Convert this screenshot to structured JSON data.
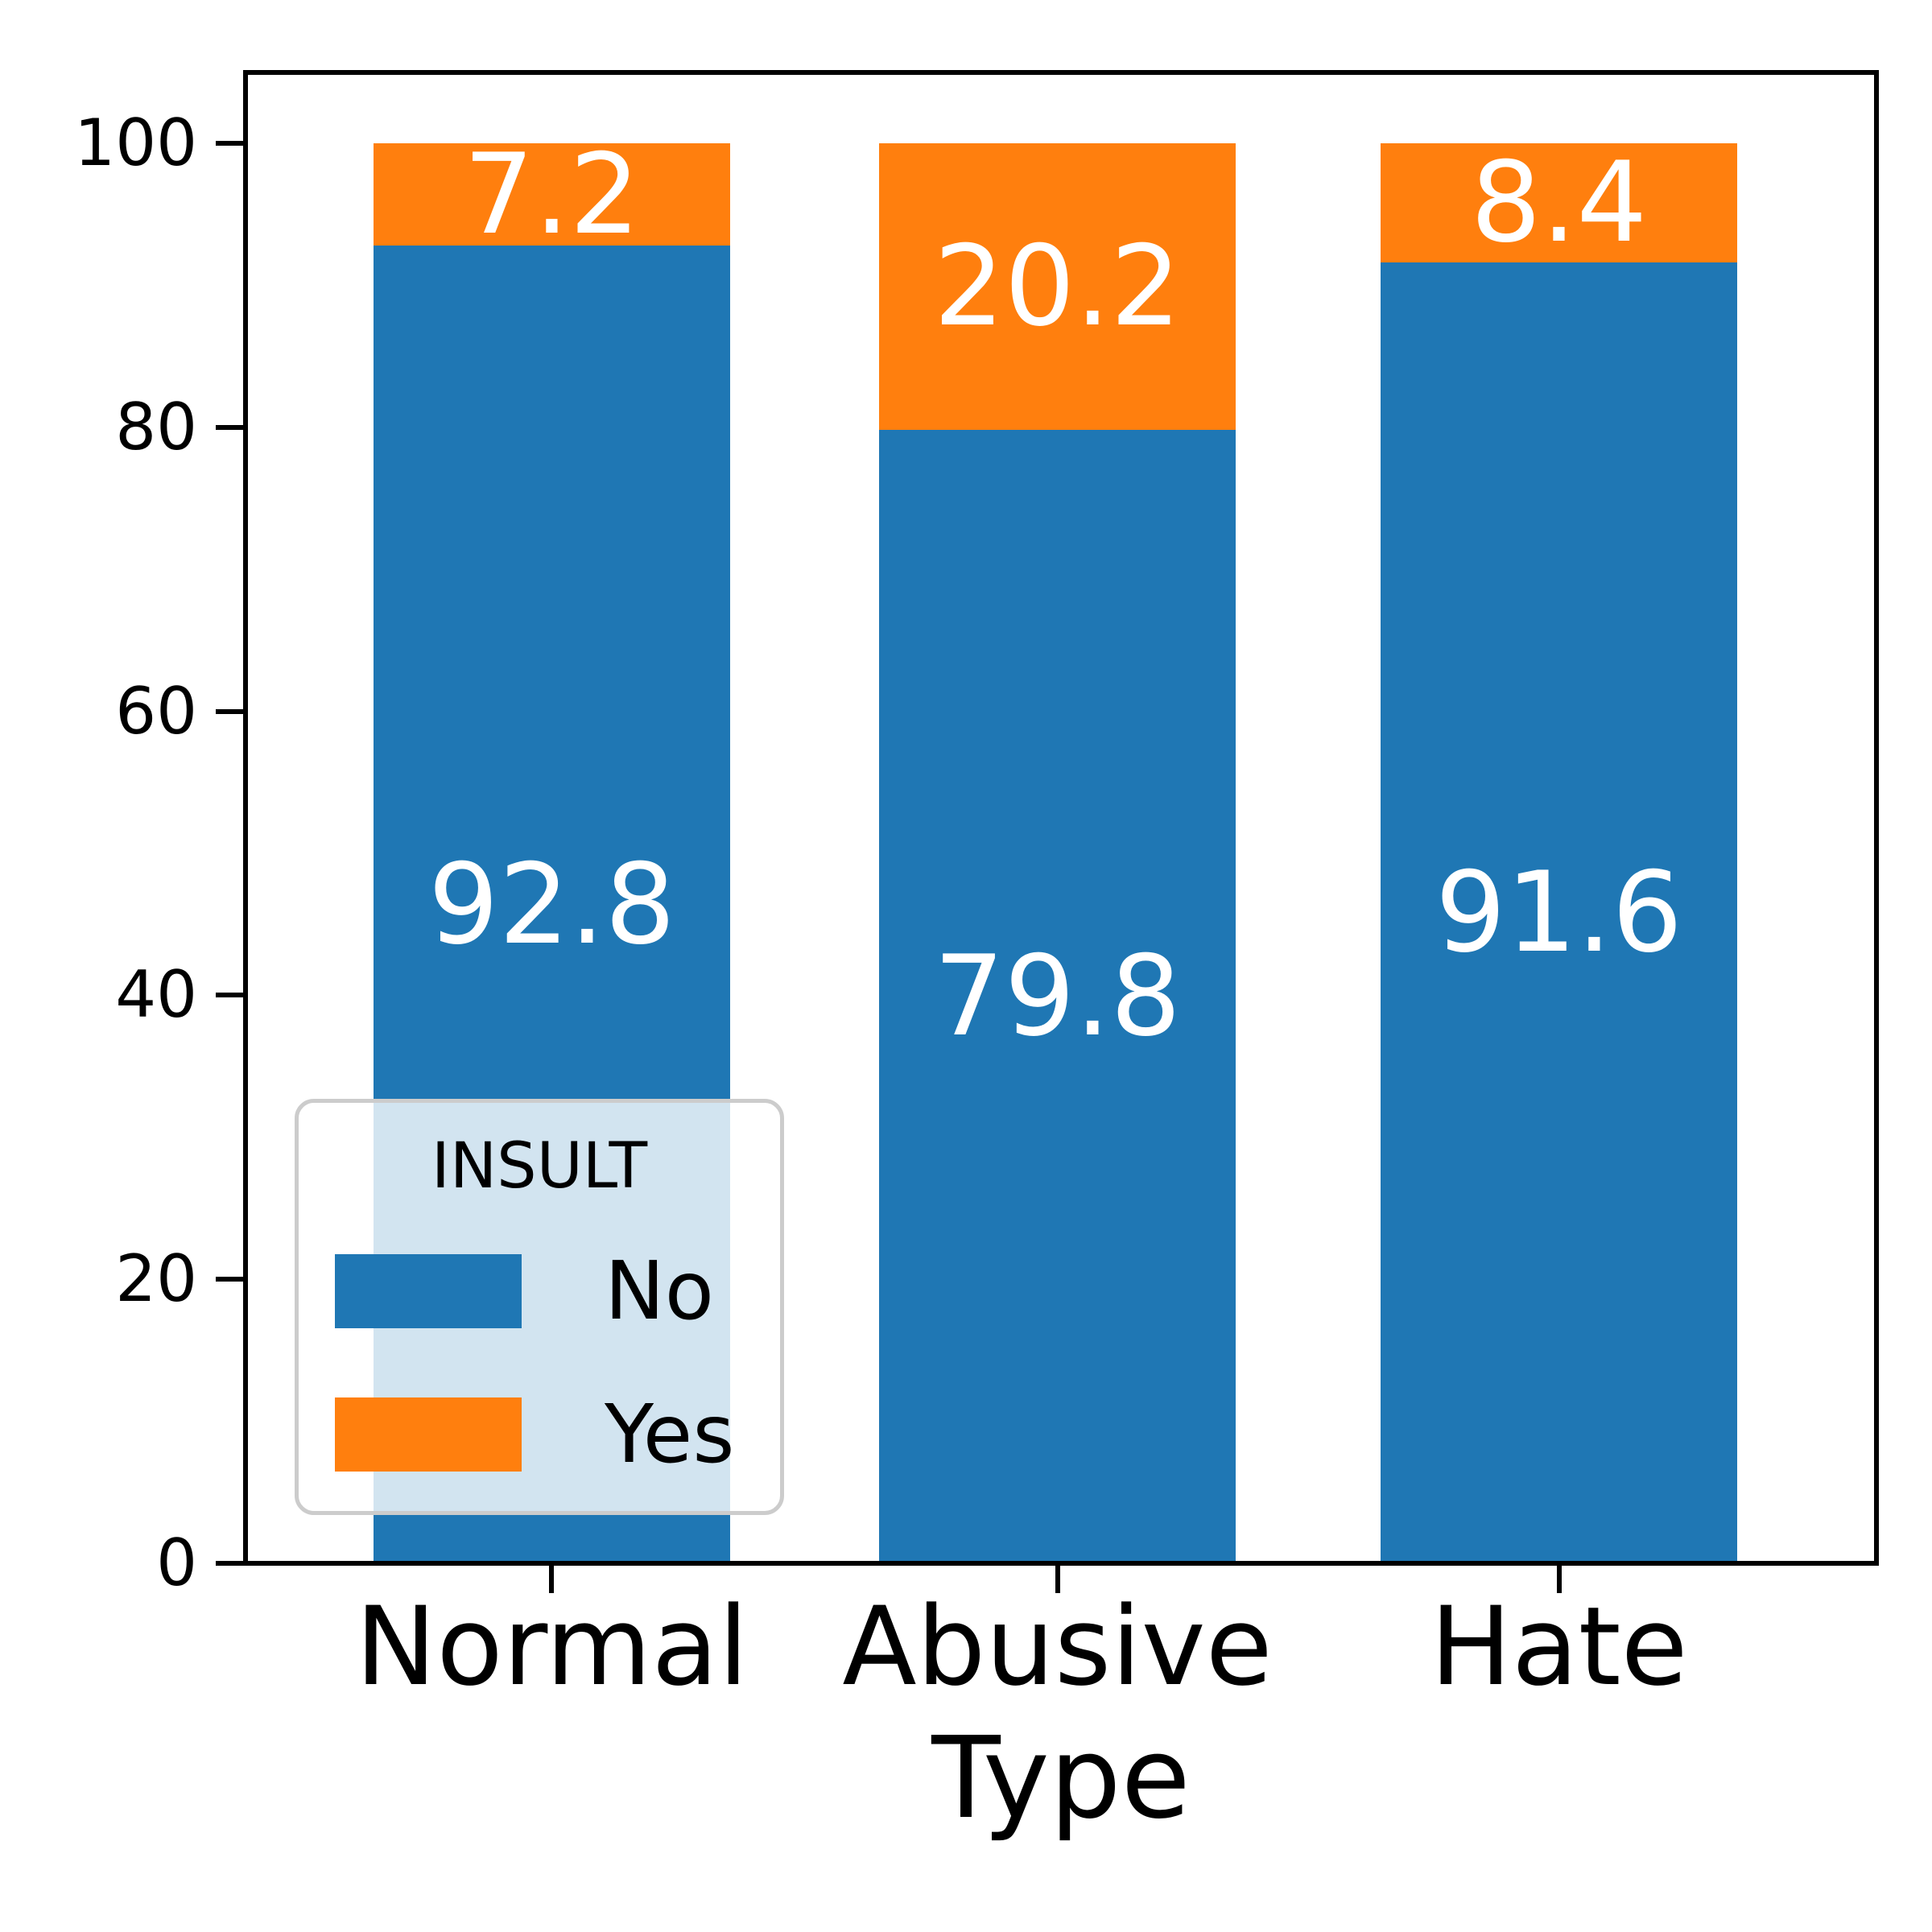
{
  "chart_data": {
    "type": "bar",
    "stacked": true,
    "title": "",
    "xlabel": "Type",
    "ylabel": "",
    "categories": [
      "Normal",
      "Abusive",
      "Hate"
    ],
    "series": [
      {
        "name": "No",
        "color": "#1f77b4",
        "values": [
          92.8,
          79.8,
          91.6
        ]
      },
      {
        "name": "Yes",
        "color": "#ff7f0e",
        "values": [
          7.2,
          20.2,
          8.4
        ]
      }
    ],
    "bar_value_labels": [
      [
        "92.8",
        "79.8",
        "91.6"
      ],
      [
        "7.2",
        "20.2",
        "8.4"
      ]
    ],
    "bar_label_color": "#ffffff",
    "ylim": [
      0,
      105
    ],
    "yticks": [
      0,
      20,
      40,
      60,
      80,
      100
    ],
    "grid": false,
    "legend": {
      "title": "INSULT",
      "labels": [
        "No",
        "Yes"
      ],
      "position": "lower-left-inside"
    },
    "axis_color": "#000000",
    "legend_border_color": "#cccccc"
  }
}
